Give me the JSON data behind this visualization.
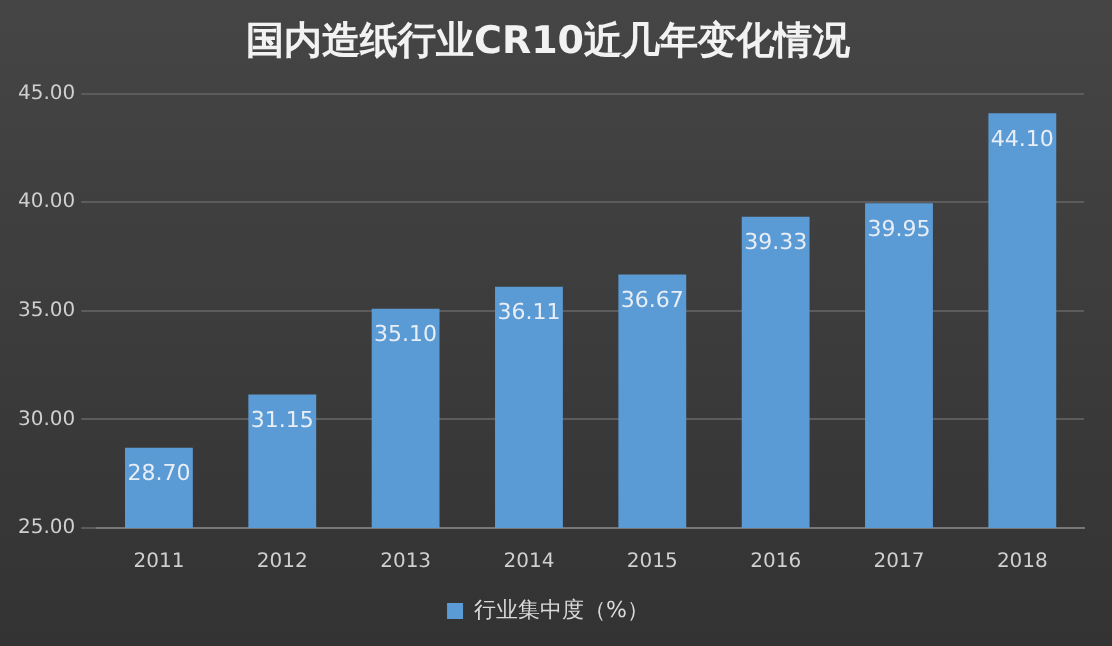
{
  "chart_data": {
    "type": "bar",
    "title": "国内造纸行业CR10近几年变化情况",
    "categories": [
      "2011",
      "2012",
      "2013",
      "2014",
      "2015",
      "2016",
      "2017",
      "2018"
    ],
    "series": [
      {
        "name": "行业集中度（%）",
        "color": "#5b9bd5",
        "values": [
          28.7,
          31.15,
          35.1,
          36.11,
          36.67,
          39.33,
          39.95,
          44.1
        ],
        "value_labels": [
          "28.70",
          "31.15",
          "35.10",
          "36.11",
          "36.67",
          "39.33",
          "39.95",
          "44.10"
        ]
      }
    ],
    "ylim": [
      25,
      45
    ],
    "yticks": [
      {
        "value": 25,
        "label": "25.00"
      },
      {
        "value": 30,
        "label": "30.00"
      },
      {
        "value": 35,
        "label": "35.00"
      },
      {
        "value": 40,
        "label": "40.00"
      },
      {
        "value": 45,
        "label": "45.00"
      }
    ],
    "grid": "y",
    "legend": "bottom"
  }
}
